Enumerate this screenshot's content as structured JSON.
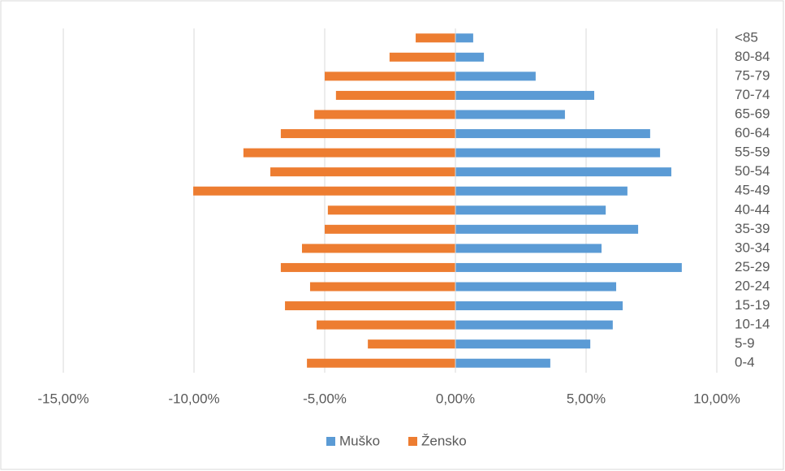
{
  "chart_data": {
    "type": "bar",
    "orientation": "horizontal",
    "categories": [
      "0-4",
      "5-9",
      "10-14",
      "15-19",
      "20-24",
      "25-29",
      "30-34",
      "35-39",
      "40-44",
      "45-49",
      "50-54",
      "55-59",
      "60-64",
      "65-69",
      "70-74",
      "75-79",
      "80-84",
      "<85"
    ],
    "series": [
      {
        "name": "Muško",
        "color": "#5b9bd5",
        "values": [
          3.63,
          5.16,
          6.02,
          6.4,
          6.15,
          8.66,
          5.59,
          6.99,
          5.75,
          6.58,
          8.26,
          7.83,
          7.45,
          4.19,
          5.31,
          3.07,
          1.09,
          0.68
        ]
      },
      {
        "name": "Žensko",
        "color": "#ed7d31",
        "values": [
          -5.68,
          -3.35,
          -5.31,
          -6.52,
          -5.56,
          -6.68,
          -5.87,
          -5.0,
          -4.88,
          -10.03,
          -7.08,
          -8.11,
          -6.68,
          -5.4,
          -4.57,
          -5.0,
          -2.52,
          -1.52
        ]
      }
    ],
    "xlim": [
      -15,
      10
    ],
    "xticks": [
      {
        "value": -15,
        "label": "-15,00%"
      },
      {
        "value": -10,
        "label": "-10,00%"
      },
      {
        "value": -5,
        "label": "-5,00%"
      },
      {
        "value": 0,
        "label": "0,00%"
      },
      {
        "value": 5,
        "label": "5,00%"
      },
      {
        "value": 10,
        "label": "10,00%"
      }
    ],
    "grid": true,
    "legend": "bottom"
  }
}
